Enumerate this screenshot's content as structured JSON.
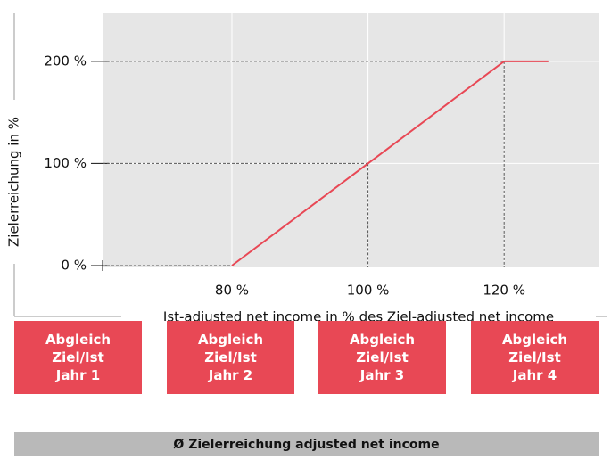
{
  "chart_data": {
    "type": "line",
    "x_label": "Ist-adjusted net income in % des Ziel-adjusted net income",
    "y_label": "Zielerreichung in %",
    "xlim": [
      61,
      134
    ],
    "ylim": [
      0,
      247
    ],
    "xticks": [
      {
        "value": 80,
        "label": "80 %"
      },
      {
        "value": 100,
        "label": "100 %"
      },
      {
        "value": 120,
        "label": "120 %"
      }
    ],
    "yticks": [
      {
        "value": 0,
        "label": "0 %"
      },
      {
        "value": 100,
        "label": "100 %"
      },
      {
        "value": 200,
        "label": "200 %"
      }
    ],
    "grid": true,
    "series": [
      {
        "color": "#e84855",
        "x": [
          80,
          100,
          120,
          126.5
        ],
        "values": [
          0,
          100,
          200,
          200
        ]
      }
    ]
  },
  "boxes": [
    [
      "Abgleich",
      "Ziel/Ist",
      "Jahr 1"
    ],
    [
      "Abgleich",
      "Ziel/Ist",
      "Jahr 2"
    ],
    [
      "Abgleich",
      "Ziel/Ist",
      "Jahr 3"
    ],
    [
      "Abgleich",
      "Ziel/Ist",
      "Jahr 4"
    ]
  ],
  "footer": "Ø Zielerreichung adjusted net income"
}
